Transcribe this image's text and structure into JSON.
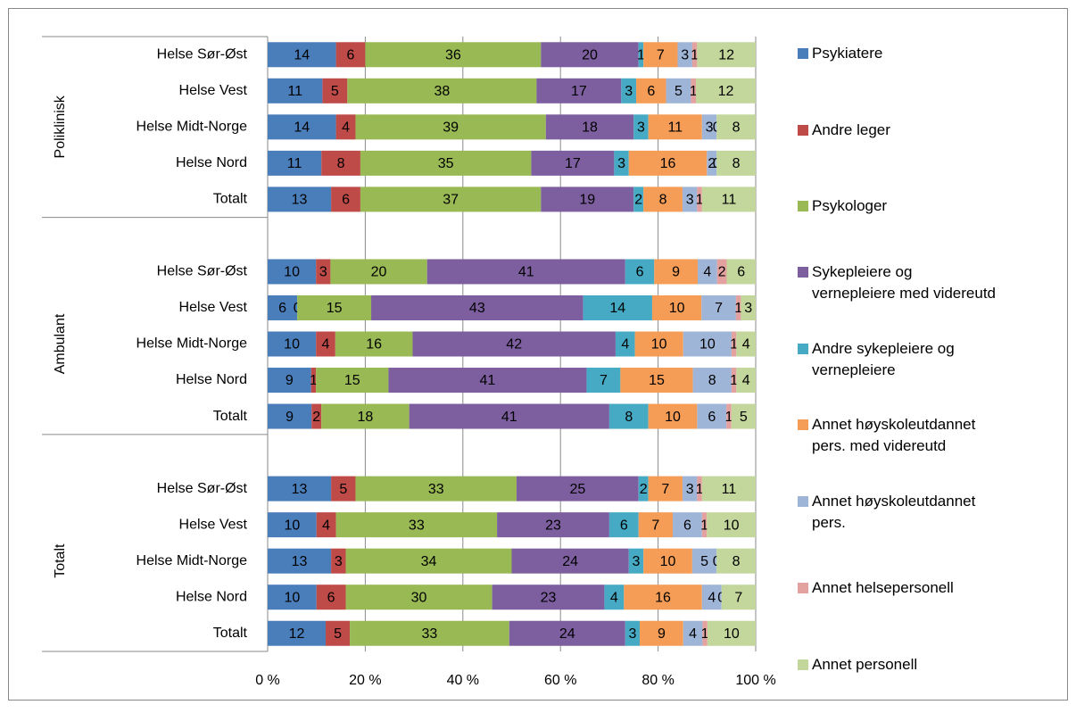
{
  "chart_data": {
    "type": "bar",
    "orientation": "horizontal",
    "stacking": "percent",
    "groups": [
      "Poliklinisk",
      "Ambulant",
      "Totalt"
    ],
    "categories": [
      "Helse Sør-Øst",
      "Helse Vest",
      "Helse Midt-Norge",
      "Helse Nord",
      "Totalt",
      "Helse Sør-Øst",
      "Helse Vest",
      "Helse Midt-Norge",
      "Helse Nord",
      "Totalt",
      "Helse Sør-Øst",
      "Helse Vest",
      "Helse Midt-Norge",
      "Helse Nord",
      "Totalt"
    ],
    "series": [
      {
        "name": "Psykiatere",
        "color": "#4a7ebb",
        "values": [
          14,
          11,
          14,
          11,
          13,
          10,
          6,
          10,
          9,
          9,
          13,
          10,
          13,
          10,
          12
        ]
      },
      {
        "name": "Andre leger",
        "color": "#be4b48",
        "values": [
          6,
          5,
          4,
          8,
          6,
          3,
          0,
          4,
          1,
          2,
          5,
          4,
          3,
          6,
          5
        ]
      },
      {
        "name": "Psykologer",
        "color": "#98b954",
        "values": [
          36,
          38,
          39,
          35,
          37,
          20,
          15,
          16,
          15,
          18,
          33,
          33,
          34,
          30,
          33
        ]
      },
      {
        "name": "Sykepleiere og vernepleiere med videreutd",
        "color": "#7d5fa0",
        "values": [
          20,
          17,
          18,
          17,
          19,
          41,
          43,
          42,
          41,
          41,
          25,
          23,
          24,
          23,
          24
        ]
      },
      {
        "name": "Andre sykepleiere og vernepleiere",
        "color": "#46aac5",
        "values": [
          1,
          3,
          3,
          3,
          2,
          6,
          14,
          4,
          7,
          8,
          2,
          6,
          3,
          4,
          3
        ]
      },
      {
        "name": "Annet høyskoleutdannet pers. med videreutd",
        "color": "#f59d56",
        "values": [
          7,
          6,
          11,
          16,
          8,
          9,
          10,
          10,
          15,
          10,
          7,
          7,
          10,
          16,
          9
        ]
      },
      {
        "name": "Annet høyskoleutdannet pers.",
        "color": "#9fb5d8",
        "values": [
          3,
          5,
          3,
          2,
          3,
          4,
          7,
          10,
          8,
          6,
          3,
          6,
          5,
          4,
          4
        ]
      },
      {
        "name": "Annet helsepersonell",
        "color": "#e3a1a0",
        "values": [
          1,
          1,
          0,
          0,
          1,
          2,
          1,
          1,
          1,
          1,
          1,
          1,
          0,
          0,
          1
        ]
      },
      {
        "name": "Annet personell",
        "color": "#c3d69b",
        "values": [
          12,
          12,
          8,
          8,
          11,
          6,
          3,
          4,
          4,
          5,
          11,
          10,
          8,
          7,
          10
        ]
      }
    ],
    "xlim": [
      0,
      100
    ],
    "xticks": [
      {
        "value": 0,
        "label": "0 %"
      },
      {
        "value": 20,
        "label": "20 %"
      },
      {
        "value": 40,
        "label": "40 %"
      },
      {
        "value": 60,
        "label": "60 %"
      },
      {
        "value": 80,
        "label": "80 %"
      },
      {
        "value": 100,
        "label": "100 %"
      }
    ],
    "grid": true,
    "legend": "right"
  }
}
